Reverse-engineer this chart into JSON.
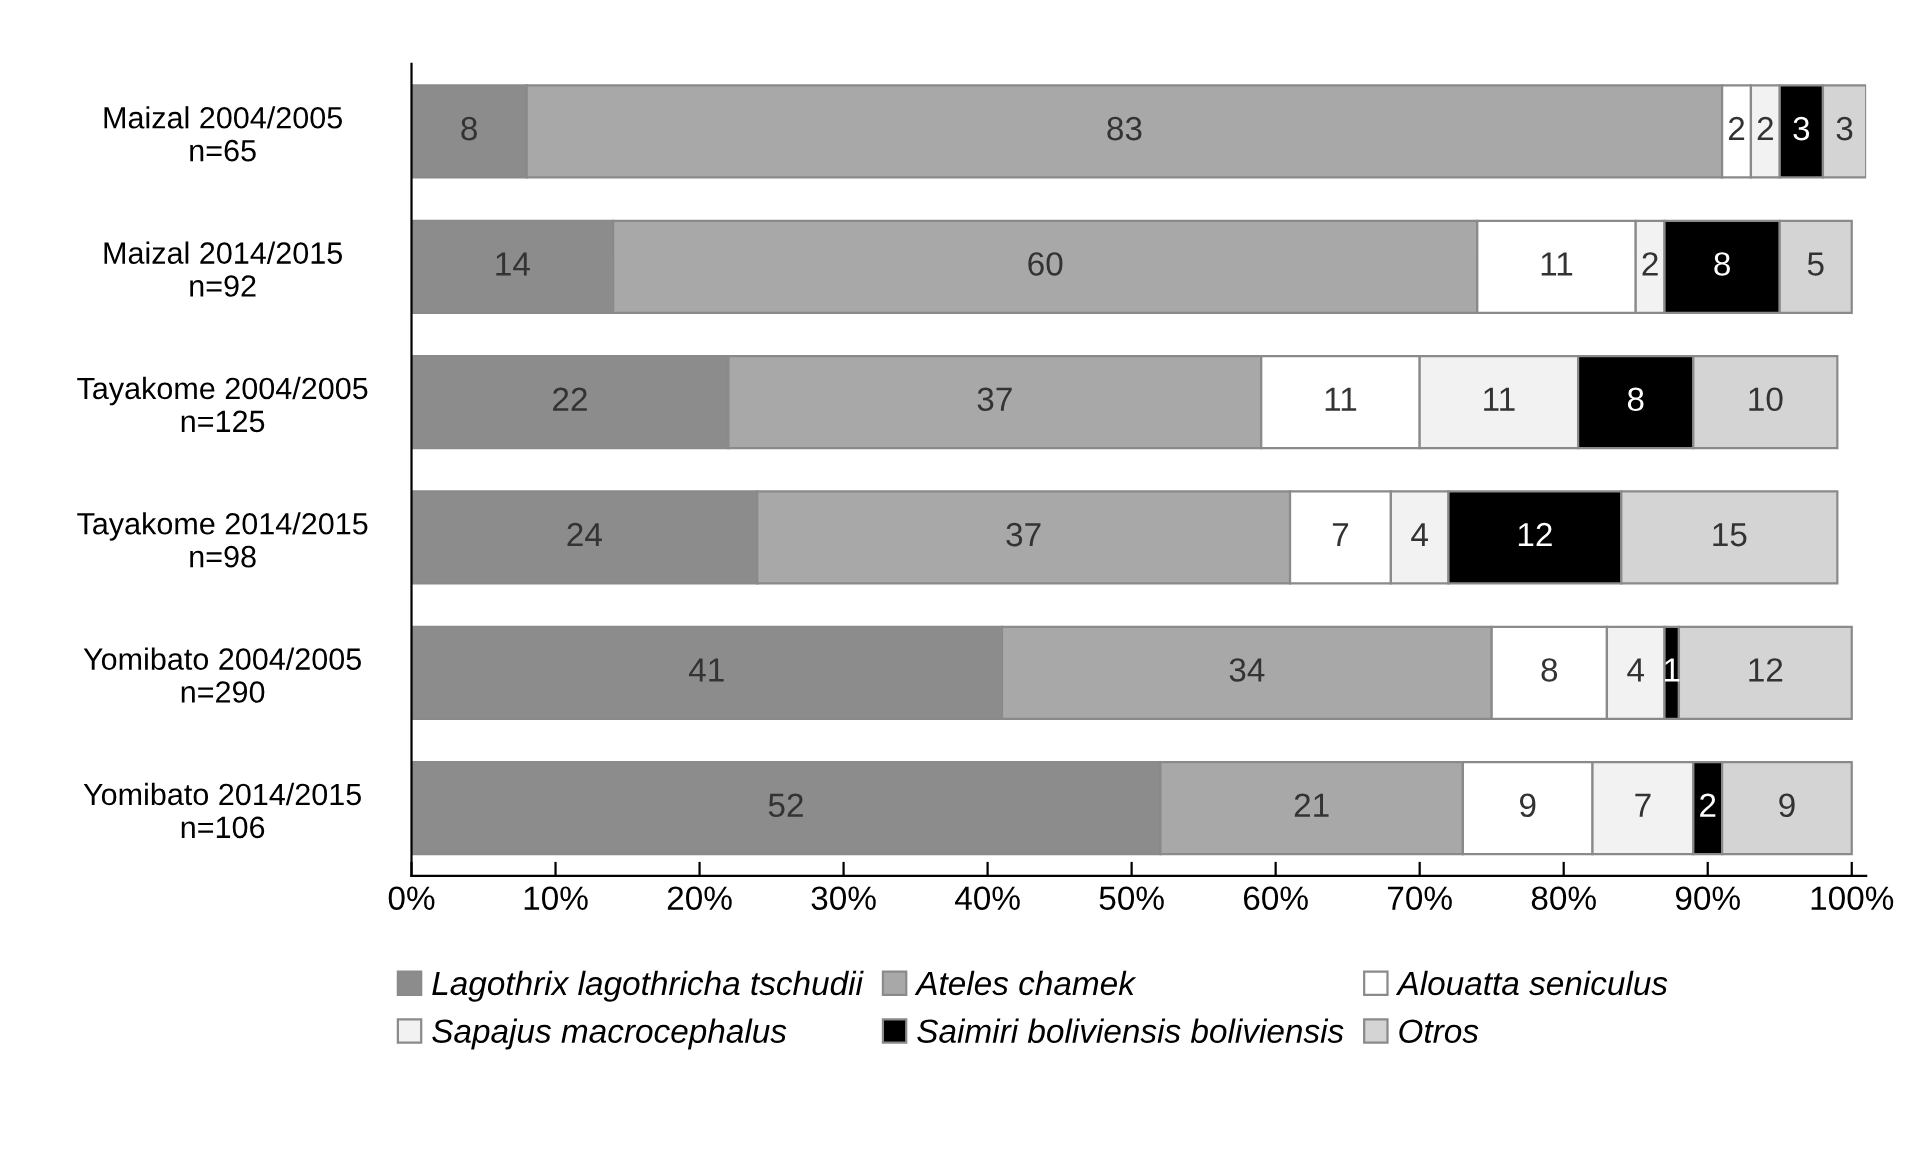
{
  "chart_data": {
    "type": "bar",
    "orientation": "horizontal",
    "stacked": true,
    "data_labels": true,
    "legend": "bottom",
    "grid": false,
    "categories": [
      "Maizal 2004/2005\nn=65",
      "Maizal 2014/2015\nn=92",
      "Tayakome 2004/2005\nn=125",
      "Tayakome 2014/2015\nn=98",
      "Yomibato 2004/2005\nn=290",
      "Yomibato 2014/2015\nn=106"
    ],
    "series": [
      {
        "name": "Lagothrix lagothricha tschudii",
        "color": "#8c8c8c",
        "values": [
          8,
          14,
          22,
          24,
          41,
          52
        ]
      },
      {
        "name": "Ateles chamek",
        "color": "#a8a8a8",
        "values": [
          83,
          60,
          37,
          37,
          34,
          21
        ]
      },
      {
        "name": "Alouatta seniculus",
        "color": "#ffffff",
        "values": [
          2,
          11,
          11,
          7,
          8,
          9
        ]
      },
      {
        "name": "Sapajus macrocephalus",
        "color": "#f2f2f2",
        "values": [
          2,
          2,
          11,
          4,
          4,
          7
        ]
      },
      {
        "name": "Saimiri boliviensis boliviensis",
        "color": "#000000",
        "values": [
          3,
          8,
          8,
          12,
          1,
          2
        ]
      },
      {
        "name": "Otros",
        "color": "#d4d4d4",
        "values": [
          3,
          5,
          10,
          15,
          12,
          9
        ]
      }
    ],
    "xlim": [
      0,
      101
    ],
    "xticks": [
      {
        "value": 0,
        "label": "0%"
      },
      {
        "value": 10,
        "label": "10%"
      },
      {
        "value": 20,
        "label": "20%"
      },
      {
        "value": 30,
        "label": "30%"
      },
      {
        "value": 40,
        "label": "40%"
      },
      {
        "value": 50,
        "label": "50%"
      },
      {
        "value": 60,
        "label": "60%"
      },
      {
        "value": 70,
        "label": "70%"
      },
      {
        "value": 80,
        "label": "80%"
      },
      {
        "value": 90,
        "label": "90%"
      },
      {
        "value": 100,
        "label": "100%"
      }
    ]
  }
}
